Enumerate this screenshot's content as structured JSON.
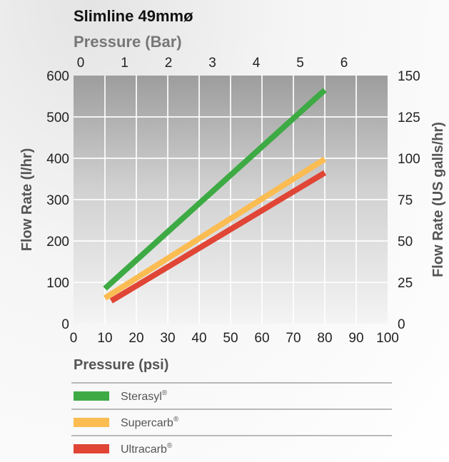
{
  "chart_data": {
    "type": "line",
    "title": "Slimline 49mmø",
    "top_axis": {
      "label": "Pressure (Bar)",
      "ticks": [
        0,
        1,
        2,
        3,
        4,
        5,
        6
      ],
      "tick_labels": [
        "0",
        "1",
        "2",
        "3",
        "4",
        "5",
        "6"
      ]
    },
    "x_axis": {
      "label": "Pressure (psi)",
      "range": [
        0,
        100
      ],
      "ticks": [
        0,
        10,
        20,
        30,
        40,
        50,
        60,
        70,
        80,
        90,
        100
      ],
      "tick_labels": [
        "0",
        "10",
        "20",
        "30",
        "40",
        "50",
        "60",
        "70",
        "80",
        "90",
        "100"
      ]
    },
    "y_axis": {
      "label": "Flow Rate (l/hr)",
      "range": [
        0,
        600
      ],
      "ticks": [
        0,
        100,
        200,
        300,
        400,
        500,
        600
      ],
      "tick_labels": [
        "0",
        "100",
        "200",
        "300",
        "400",
        "500",
        "600"
      ]
    },
    "y2_axis": {
      "label": "Flow Rate (US galls/hr)",
      "range": [
        0,
        150
      ],
      "ticks": [
        0,
        25,
        50,
        75,
        100,
        125,
        150
      ],
      "tick_labels": [
        "0",
        "25",
        "50",
        "75",
        "100",
        "125",
        "150"
      ]
    },
    "grid": true,
    "legend_position": "bottom",
    "series": [
      {
        "name": "Sterasyl",
        "mark": "®",
        "color": "#3daa44",
        "x": [
          10,
          80
        ],
        "y": [
          85,
          565
        ]
      },
      {
        "name": "Supercarb",
        "mark": "®",
        "color": "#fbbc52",
        "x": [
          10,
          80
        ],
        "y": [
          62,
          398
        ]
      },
      {
        "name": "Ultracarb",
        "mark": "®",
        "color": "#e04535",
        "x": [
          12,
          80
        ],
        "y": [
          55,
          365
        ]
      }
    ]
  }
}
